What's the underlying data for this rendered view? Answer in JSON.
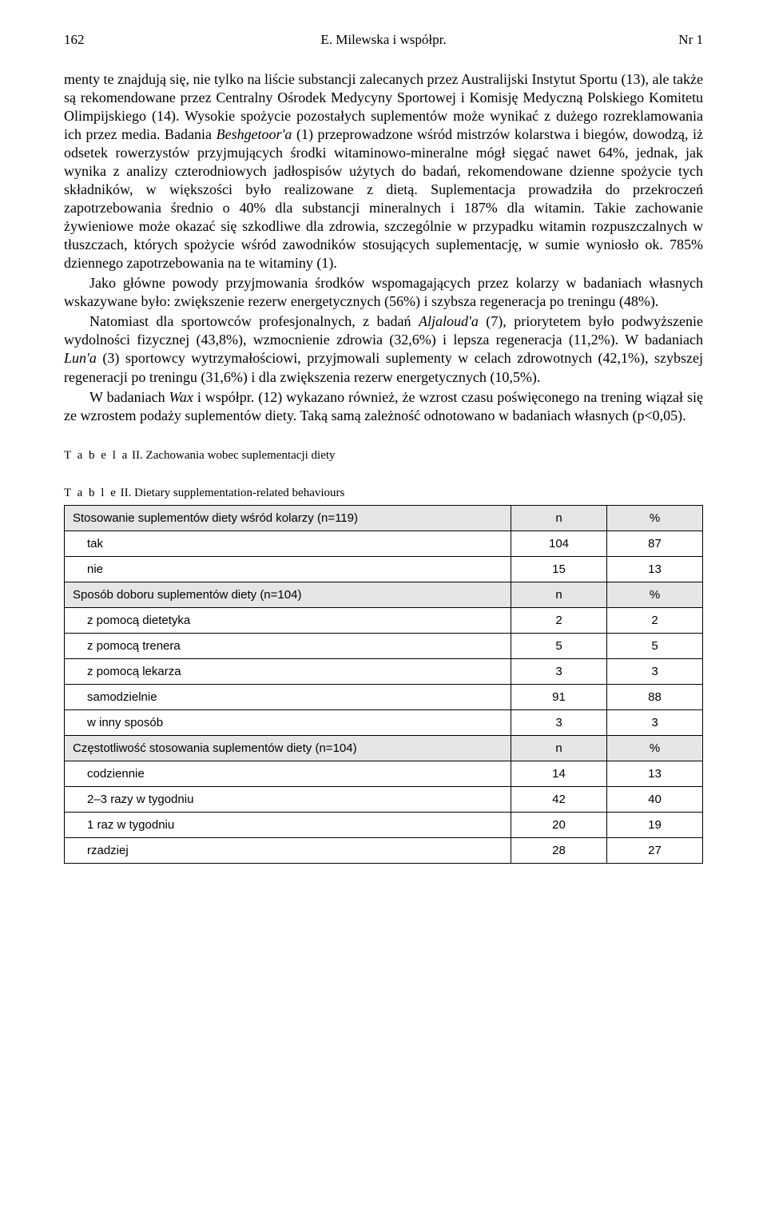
{
  "header": {
    "page_left": "162",
    "center": "E. Milewska i współpr.",
    "page_right": "Nr 1"
  },
  "paragraphs": {
    "p1": "menty te znajdują się, nie tylko na liście substancji zalecanych przez Australijski Instytut Sportu (13), ale także są rekomendowane przez Centralny Ośrodek Medycyny Sportowej i Komisję Medyczną Polskiego Komitetu Olimpijskiego (14). Wysokie spożycie pozostałych suplementów może wynikać z dużego rozreklamowania ich przez media. Badania ",
    "p1_italic1": "Beshgetoor'a",
    "p1_cont1": " (1) przeprowadzone wśród mistrzów kolarstwa i biegów, dowodzą, iż odsetek rowerzystów przyjmujących środki witaminowo-mineralne mógł sięgać nawet 64%, jednak, jak wynika z analizy czterodniowych jadłospisów użytych do badań, rekomendowane dzienne spożycie tych składników, w większości było realizowane z dietą. Suplementacja prowadziła do przekroczeń zapotrzebowania średnio o 40% dla substancji mineralnych i 187% dla witamin. Takie zachowanie żywieniowe może okazać się szkodliwe dla zdrowia, szczególnie w przypadku witamin rozpuszczalnych w tłuszczach, których spożycie wśród zawodników stosujących suplementację, w sumie wyniosło ok. 785% dziennego zapotrzebowania na te witaminy (1).",
    "p2": "Jako główne powody przyjmowania środków wspomagających przez kolarzy w badaniach własnych wskazywane było: zwiększenie rezerw energetycznych (56%) i szybsza regeneracja po treningu (48%).",
    "p3_a": "Natomiast dla sportowców profesjonalnych, z badań ",
    "p3_italic1": "Aljaloud'a",
    "p3_b": " (7), priorytetem było podwyższenie wydolności fizycznej (43,8%), wzmocnienie zdrowia (32,6%) i lepsza regeneracja (11,2%). W badaniach ",
    "p3_italic2": "Lun'a",
    "p3_c": " (3) sportowcy wytrzymałościowi, przyjmowali suplementy w celach zdrowotnych (42,1%), szybszej regeneracji po treningu (31,6%) i dla zwiększenia rezerw energetycznych (10,5%).",
    "p4_a": "W badaniach ",
    "p4_italic1": "Wax",
    "p4_b": " i współpr. (12) wykazano również, że wzrost czasu poświęconego na trening wiązał się ze wzrostem podaży suplementów diety. Taką samą zależność odnotowano w badaniach własnych (p<0,05)."
  },
  "table_caption": {
    "label_pl_prefix": "T a b e l a",
    "label_pl_num": " II.",
    "title_pl": " Zachowania wobec suplementacji diety",
    "label_en_prefix": "T a b l e",
    "label_en_num": " II.",
    "title_en": " Dietary supplementation-related behaviours"
  },
  "table": {
    "columns": {
      "n": "n",
      "pct": "%"
    },
    "sections": [
      {
        "header": "Stosowanie suplementów diety wśród kolarzy (n=119)",
        "rows": [
          {
            "label": "tak",
            "n": "104",
            "pct": "87"
          },
          {
            "label": "nie",
            "n": "15",
            "pct": "13"
          }
        ]
      },
      {
        "header": "Sposób doboru suplementów diety (n=104)",
        "rows": [
          {
            "label": "z pomocą dietetyka",
            "n": "2",
            "pct": "2"
          },
          {
            "label": "z pomocą trenera",
            "n": "5",
            "pct": "5"
          },
          {
            "label": "z pomocą lekarza",
            "n": "3",
            "pct": "3"
          },
          {
            "label": "samodzielnie",
            "n": "91",
            "pct": "88"
          },
          {
            "label": "w inny sposób",
            "n": "3",
            "pct": "3"
          }
        ]
      },
      {
        "header": "Częstotliwość stosowania suplementów diety (n=104)",
        "rows": [
          {
            "label": "codziennie",
            "n": "14",
            "pct": "13"
          },
          {
            "label": "2–3 razy w tygodniu",
            "n": "42",
            "pct": "40"
          },
          {
            "label": "1 raz w tygodniu",
            "n": "20",
            "pct": "19"
          },
          {
            "label": "rzadziej",
            "n": "28",
            "pct": "27"
          }
        ]
      }
    ],
    "styles": {
      "section_bg": "#e5e5e5",
      "border_color": "#000000",
      "font_size_pt": 11
    }
  }
}
